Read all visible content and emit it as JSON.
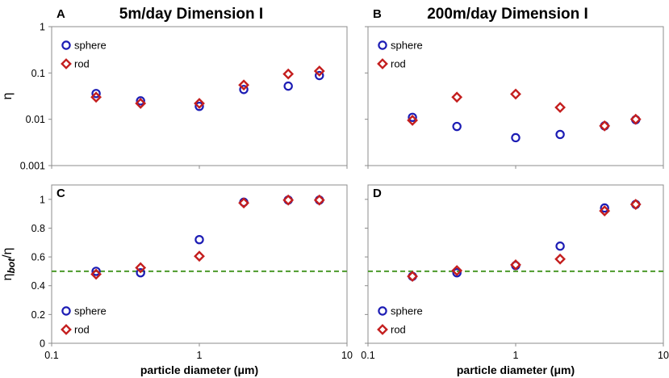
{
  "chart_data": [
    {
      "id": "A",
      "type": "scatter",
      "panel_label": "A",
      "title": "5m/day Dimension I",
      "xlabel": "",
      "ylabel": "η",
      "xscale": "log",
      "yscale": "log",
      "xlim": [
        0.1,
        10
      ],
      "ylim": [
        0.001,
        1
      ],
      "x_ticks": [
        0.1,
        1,
        10
      ],
      "x_tick_labels": [],
      "y_ticks": [
        0.001,
        0.01,
        0.1,
        1
      ],
      "y_tick_labels": [
        "0.001",
        "0.01",
        "0.1",
        "1"
      ],
      "legend_position": "top-left",
      "reference_line": null,
      "series": [
        {
          "name": "sphere",
          "marker": "circle",
          "color": "#1c1cb4",
          "x": [
            0.2,
            0.4,
            1,
            2,
            4,
            6.5
          ],
          "y": [
            0.036,
            0.025,
            0.019,
            0.044,
            0.052,
            0.088
          ]
        },
        {
          "name": "rod",
          "marker": "diamond",
          "color": "#c41e1e",
          "x": [
            0.2,
            0.4,
            1,
            2,
            4,
            6.5
          ],
          "y": [
            0.03,
            0.022,
            0.022,
            0.055,
            0.095,
            0.11
          ]
        }
      ]
    },
    {
      "id": "B",
      "type": "scatter",
      "panel_label": "B",
      "title": "200m/day Dimension I",
      "xlabel": "",
      "ylabel": "",
      "xscale": "log",
      "yscale": "log",
      "xlim": [
        0.1,
        10
      ],
      "ylim": [
        0.001,
        1
      ],
      "x_ticks": [
        0.1,
        1,
        10
      ],
      "x_tick_labels": [],
      "y_ticks": [
        0.001,
        0.01,
        0.1,
        1
      ],
      "y_tick_labels": [],
      "legend_position": "top-left",
      "reference_line": null,
      "series": [
        {
          "name": "sphere",
          "marker": "circle",
          "color": "#1c1cb4",
          "x": [
            0.2,
            0.4,
            1,
            2,
            4,
            6.5
          ],
          "y": [
            0.011,
            0.007,
            0.004,
            0.0047,
            0.0072,
            0.0098
          ]
        },
        {
          "name": "rod",
          "marker": "diamond",
          "color": "#c41e1e",
          "x": [
            0.2,
            0.4,
            1,
            2,
            4,
            6.5
          ],
          "y": [
            0.0095,
            0.03,
            0.035,
            0.018,
            0.0072,
            0.01
          ]
        }
      ]
    },
    {
      "id": "C",
      "type": "scatter",
      "panel_label": "C",
      "title": "",
      "xlabel": "particle diameter (μm)",
      "ylabel": "η",
      "ylabel_sub": "bot",
      "ylabel_suffix": "/η",
      "xscale": "log",
      "yscale": "linear",
      "xlim": [
        0.1,
        10
      ],
      "ylim": [
        0,
        1.1
      ],
      "x_ticks": [
        0.1,
        1,
        10
      ],
      "x_tick_labels": [
        "0.1",
        "1",
        "10"
      ],
      "y_ticks": [
        0,
        0.2,
        0.4,
        0.6,
        0.8,
        1
      ],
      "y_tick_labels": [
        "0",
        "0.2",
        "0.4",
        "0.6",
        "0.8",
        "1"
      ],
      "legend_position": "bottom-left",
      "reference_line": {
        "y": 0.5,
        "color": "#4c9a2a",
        "style": "dashed"
      },
      "series": [
        {
          "name": "sphere",
          "marker": "circle",
          "color": "#1c1cb4",
          "x": [
            0.2,
            0.4,
            1,
            2,
            4,
            6.5
          ],
          "y": [
            0.5,
            0.49,
            0.72,
            0.98,
            0.995,
            0.995
          ]
        },
        {
          "name": "rod",
          "marker": "diamond",
          "color": "#c41e1e",
          "x": [
            0.2,
            0.4,
            1,
            2,
            4,
            6.5
          ],
          "y": [
            0.48,
            0.525,
            0.605,
            0.975,
            0.995,
            0.995
          ]
        }
      ]
    },
    {
      "id": "D",
      "type": "scatter",
      "panel_label": "D",
      "title": "",
      "xlabel": "particle diameter (μm)",
      "ylabel": "",
      "xscale": "log",
      "yscale": "linear",
      "xlim": [
        0.1,
        10
      ],
      "ylim": [
        0,
        1.1
      ],
      "x_ticks": [
        0.1,
        1,
        10
      ],
      "x_tick_labels": [
        "0.1",
        "1",
        "10"
      ],
      "y_ticks": [
        0,
        0.2,
        0.4,
        0.6,
        0.8,
        1
      ],
      "y_tick_labels": [],
      "legend_position": "bottom-left",
      "reference_line": {
        "y": 0.5,
        "color": "#4c9a2a",
        "style": "dashed"
      },
      "series": [
        {
          "name": "sphere",
          "marker": "circle",
          "color": "#1c1cb4",
          "x": [
            0.2,
            0.4,
            1,
            2,
            4,
            6.5
          ],
          "y": [
            0.465,
            0.49,
            0.54,
            0.675,
            0.94,
            0.965
          ]
        },
        {
          "name": "rod",
          "marker": "diamond",
          "color": "#c41e1e",
          "x": [
            0.2,
            0.4,
            1,
            2,
            4,
            6.5
          ],
          "y": [
            0.465,
            0.505,
            0.545,
            0.585,
            0.92,
            0.965
          ]
        }
      ]
    }
  ]
}
